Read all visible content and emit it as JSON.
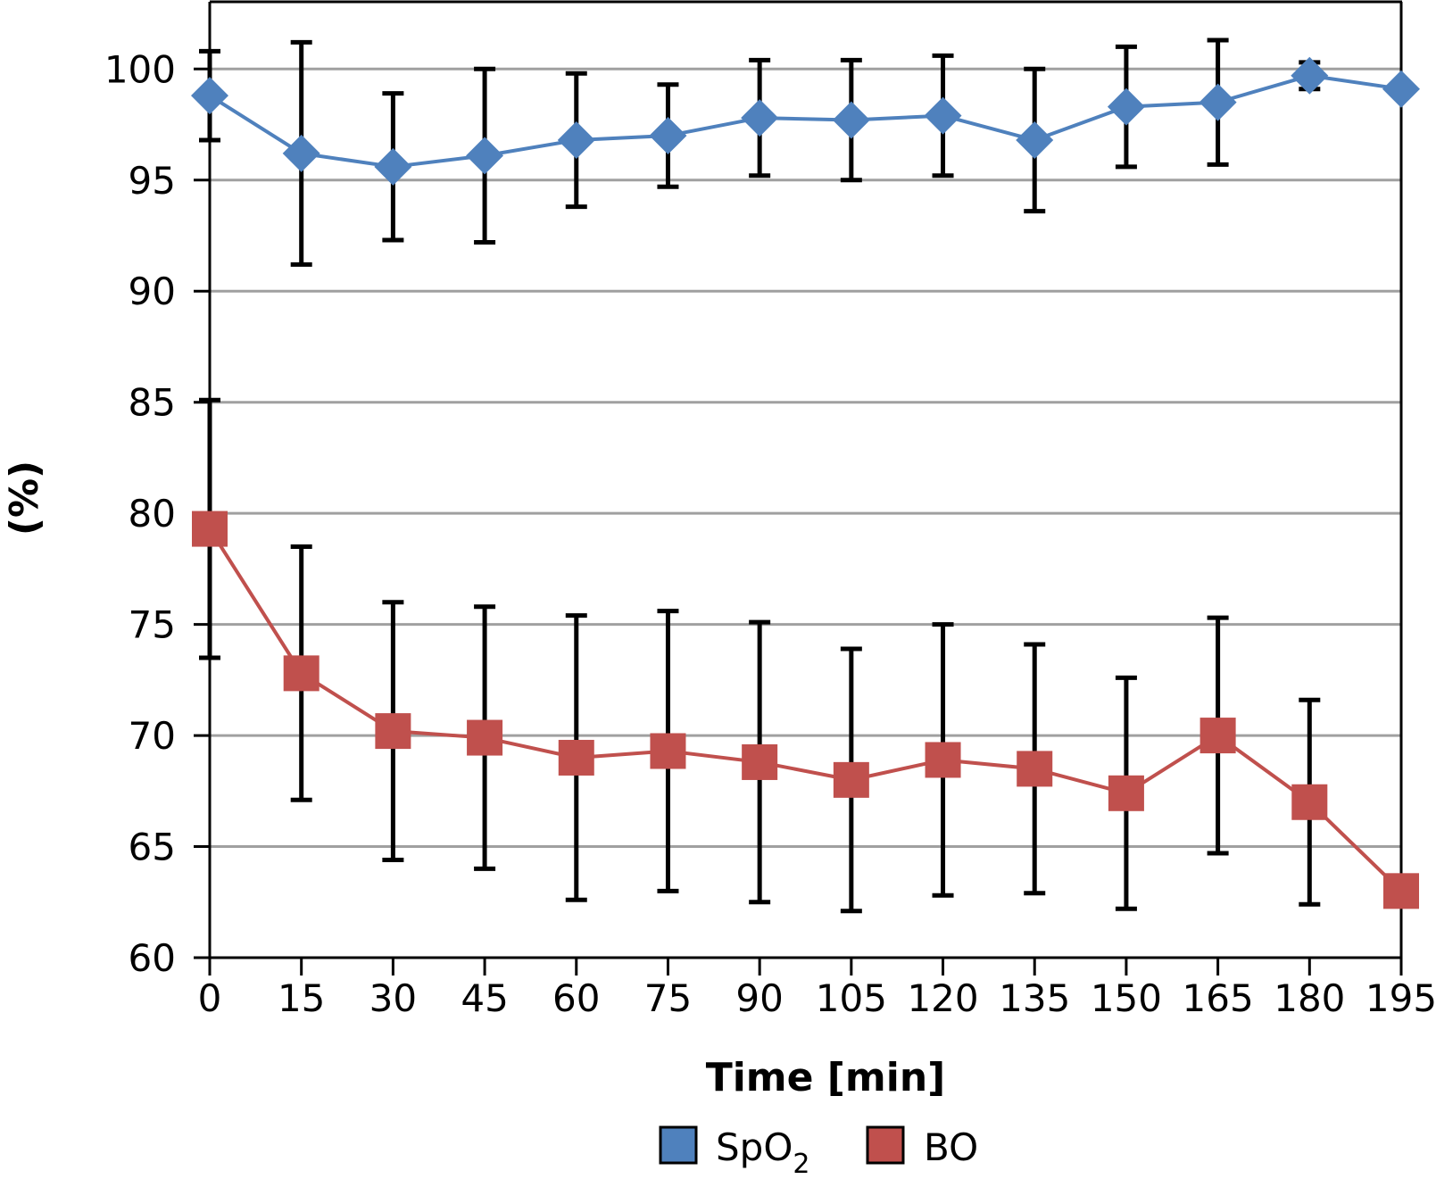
{
  "chart_data": {
    "type": "line",
    "title": "",
    "xlabel": "Time [min]",
    "ylabel": "(%)",
    "x": [
      0,
      15,
      30,
      45,
      60,
      75,
      90,
      105,
      120,
      135,
      150,
      165,
      180,
      195
    ],
    "x_tick_labels": [
      "0",
      "15",
      "30",
      "45",
      "60",
      "75",
      "90",
      "105",
      "120",
      "135",
      "150",
      "165",
      "180",
      "195"
    ],
    "xlim": [
      0,
      195
    ],
    "ylim": [
      60,
      103
    ],
    "y_ticks": [
      60,
      65,
      70,
      75,
      80,
      85,
      90,
      95,
      100
    ],
    "y_tick_labels": [
      "60",
      "65",
      "70",
      "75",
      "80",
      "85",
      "90",
      "95",
      "100"
    ],
    "grid": "horizontal",
    "legend_position": "bottom",
    "error_bars": "mean ± SD",
    "series": [
      {
        "name": "SpO2",
        "legend_label": "SpO",
        "legend_subscript": "2",
        "color": "#4F81BD",
        "marker": "diamond",
        "values": [
          98.8,
          96.2,
          95.6,
          96.1,
          96.8,
          97.0,
          97.8,
          97.7,
          97.9,
          96.8,
          98.3,
          98.5,
          99.7,
          99.1
        ],
        "error": [
          2.0,
          5.0,
          3.3,
          3.9,
          3.0,
          2.3,
          2.6,
          2.7,
          2.7,
          3.2,
          2.7,
          2.8,
          0.6,
          null
        ]
      },
      {
        "name": "BO",
        "legend_label": "BO",
        "legend_subscript": "",
        "color": "#C0504D",
        "marker": "square",
        "values": [
          79.3,
          72.8,
          70.2,
          69.9,
          69.0,
          69.3,
          68.8,
          68.0,
          68.9,
          68.5,
          67.4,
          70.0,
          67.0,
          63.0
        ],
        "error": [
          5.8,
          5.7,
          5.8,
          5.9,
          6.4,
          6.3,
          6.3,
          5.9,
          6.1,
          5.6,
          5.2,
          5.3,
          4.6,
          null
        ]
      }
    ]
  }
}
